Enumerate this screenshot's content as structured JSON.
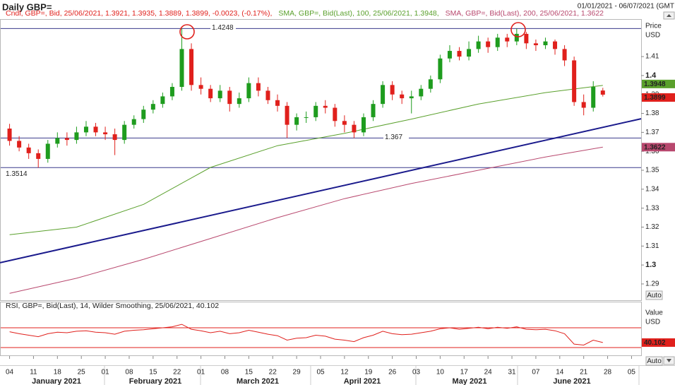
{
  "header": {
    "title": "Daily GBP=",
    "date_range": "01/01/2021 - 06/07/2021 (GMT"
  },
  "chart_data": [
    {
      "type": "candlestick",
      "legend": "Cndl, GBP=, Bid, 25/06/2021, 1.3921, 1.3935, 1.3889, 1.3899, -0.0023, (-0.17%),",
      "up_color": "#1e9c1e",
      "down_color": "#e0201c",
      "x": [
        0,
        2,
        4,
        6,
        8,
        10,
        12,
        14,
        16,
        18,
        20,
        22,
        24,
        26,
        28,
        30,
        32,
        34,
        36,
        38,
        40,
        42,
        44,
        46,
        48,
        50,
        52,
        54,
        56,
        58,
        60,
        62,
        64,
        66,
        68,
        70,
        72,
        74,
        76,
        78,
        80,
        82,
        84,
        86,
        88,
        90,
        92,
        94,
        96,
        98,
        100,
        102,
        104,
        106,
        108,
        110,
        112,
        114,
        116,
        118,
        120,
        122,
        124
      ],
      "open": [
        1.372,
        1.3655,
        1.362,
        1.359,
        1.356,
        1.364,
        1.367,
        1.366,
        1.37,
        1.373,
        1.37,
        1.369,
        1.366,
        1.374,
        1.377,
        1.382,
        1.385,
        1.389,
        1.394,
        1.414,
        1.395,
        1.393,
        1.388,
        1.392,
        1.385,
        1.388,
        1.396,
        1.392,
        1.387,
        1.384,
        1.374,
        1.378,
        1.378,
        1.384,
        1.383,
        1.376,
        1.374,
        1.37,
        1.378,
        1.385,
        1.395,
        1.39,
        1.388,
        1.389,
        1.393,
        1.398,
        1.409,
        1.413,
        1.41,
        1.414,
        1.418,
        1.415,
        1.42,
        1.418,
        1.422,
        1.417,
        1.416,
        1.418,
        1.414,
        1.408,
        1.386,
        1.383,
        1.3921
      ],
      "high": [
        1.3745,
        1.368,
        1.364,
        1.361,
        1.366,
        1.37,
        1.37,
        1.373,
        1.376,
        1.375,
        1.373,
        1.372,
        1.376,
        1.379,
        1.384,
        1.387,
        1.391,
        1.396,
        1.4248,
        1.417,
        1.399,
        1.395,
        1.395,
        1.394,
        1.391,
        1.399,
        1.399,
        1.394,
        1.39,
        1.386,
        1.38,
        1.381,
        1.386,
        1.387,
        1.385,
        1.379,
        1.376,
        1.38,
        1.387,
        1.397,
        1.397,
        1.392,
        1.392,
        1.395,
        1.4,
        1.411,
        1.416,
        1.415,
        1.418,
        1.421,
        1.42,
        1.422,
        1.422,
        1.4248,
        1.423,
        1.419,
        1.42,
        1.419,
        1.416,
        1.41,
        1.39,
        1.397,
        1.3935
      ],
      "low": [
        1.363,
        1.36,
        1.356,
        1.3514,
        1.354,
        1.362,
        1.363,
        1.364,
        1.368,
        1.368,
        1.366,
        1.358,
        1.364,
        1.372,
        1.375,
        1.38,
        1.383,
        1.387,
        1.392,
        1.392,
        1.39,
        1.386,
        1.386,
        1.381,
        1.383,
        1.386,
        1.389,
        1.385,
        1.381,
        1.367,
        1.371,
        1.375,
        1.376,
        1.38,
        1.373,
        1.37,
        1.367,
        1.368,
        1.376,
        1.383,
        1.387,
        1.385,
        1.38,
        1.387,
        1.391,
        1.396,
        1.407,
        1.408,
        1.408,
        1.412,
        1.412,
        1.413,
        1.415,
        1.416,
        1.414,
        1.413,
        1.414,
        1.411,
        1.405,
        1.384,
        1.379,
        1.381,
        1.3889
      ],
      "close": [
        1.3655,
        1.362,
        1.359,
        1.356,
        1.364,
        1.367,
        1.366,
        1.37,
        1.373,
        1.37,
        1.369,
        1.366,
        1.374,
        1.377,
        1.382,
        1.385,
        1.389,
        1.394,
        1.414,
        1.395,
        1.393,
        1.388,
        1.392,
        1.385,
        1.388,
        1.396,
        1.392,
        1.387,
        1.384,
        1.374,
        1.378,
        1.378,
        1.384,
        1.383,
        1.376,
        1.374,
        1.37,
        1.378,
        1.385,
        1.395,
        1.39,
        1.388,
        1.389,
        1.393,
        1.398,
        1.409,
        1.413,
        1.41,
        1.414,
        1.418,
        1.415,
        1.42,
        1.418,
        1.422,
        1.417,
        1.416,
        1.418,
        1.414,
        1.408,
        1.386,
        1.383,
        1.394,
        1.3899
      ],
      "series": [
        {
          "name": "SMA, GBP=, Bid(Last), 100, 25/06/2021, 1.3948,",
          "color": "#5aa02c",
          "x": [
            0,
            14,
            28,
            42,
            56,
            70,
            84,
            98,
            112,
            124
          ],
          "values": [
            1.316,
            1.32,
            1.332,
            1.3515,
            1.363,
            1.3695,
            1.377,
            1.385,
            1.391,
            1.3948
          ]
        },
        {
          "name": "SMA, GBP=, Bid(Last), 200, 25/06/2021, 1.3622",
          "color": "#b8486e",
          "x": [
            0,
            14,
            28,
            42,
            56,
            70,
            84,
            98,
            112,
            124
          ],
          "values": [
            1.285,
            1.293,
            1.303,
            1.314,
            1.325,
            1.335,
            1.343,
            1.35,
            1.357,
            1.3622
          ]
        }
      ],
      "trendline": {
        "color": "#1a1a8c",
        "x": [
          -2,
          132
        ],
        "values": [
          1.3012,
          1.3772
        ]
      },
      "hlines": [
        1.4248,
        1.367,
        1.3514
      ],
      "y_axis_title": [
        "Price",
        "USD"
      ],
      "auto": "Auto",
      "xlim": [
        -2,
        132
      ],
      "ylim": [
        1.2814,
        1.4298
      ],
      "yticks": [
        1.29,
        1.3,
        1.31,
        1.32,
        1.33,
        1.34,
        1.35,
        1.36,
        1.37,
        1.38,
        1.39,
        1.4,
        1.41
      ],
      "xticks": [
        {
          "value": 0,
          "label": "04"
        },
        {
          "value": 5,
          "label": "11"
        },
        {
          "value": 10,
          "label": "18"
        },
        {
          "value": 15,
          "label": "25"
        },
        {
          "value": 20,
          "label": "01"
        },
        {
          "value": 25,
          "label": "08"
        },
        {
          "value": 30,
          "label": "15"
        },
        {
          "value": 35,
          "label": "22"
        },
        {
          "value": 40,
          "label": "01"
        },
        {
          "value": 45,
          "label": "08"
        },
        {
          "value": 50,
          "label": "15"
        },
        {
          "value": 55,
          "label": "22"
        },
        {
          "value": 60,
          "label": "29"
        },
        {
          "value": 65,
          "label": "05"
        },
        {
          "value": 70,
          "label": "12"
        },
        {
          "value": 75,
          "label": "19"
        },
        {
          "value": 80,
          "label": "26"
        },
        {
          "value": 85,
          "label": "03"
        },
        {
          "value": 90,
          "label": "10"
        },
        {
          "value": 95,
          "label": "17"
        },
        {
          "value": 100,
          "label": "24"
        },
        {
          "value": 105,
          "label": "31"
        },
        {
          "value": 110,
          "label": "07"
        },
        {
          "value": 115,
          "label": "14"
        },
        {
          "value": 120,
          "label": "21"
        },
        {
          "value": 125,
          "label": "28"
        },
        {
          "value": 130,
          "label": "05"
        }
      ],
      "month_labels": [
        "January 2021",
        "February 2021",
        "March 2021",
        "April 2021",
        "May 2021",
        "June 2021"
      ]
    },
    {
      "type": "line",
      "legend": "RSI, GBP=, Bid(Last), 14, Wilder Smoothing, 25/06/2021, 40.102",
      "color": "#e0201c",
      "x": [
        0,
        2,
        4,
        6,
        8,
        10,
        12,
        14,
        16,
        18,
        20,
        22,
        24,
        26,
        28,
        30,
        32,
        34,
        36,
        38,
        40,
        42,
        44,
        46,
        48,
        50,
        52,
        54,
        56,
        58,
        60,
        62,
        64,
        66,
        68,
        70,
        72,
        74,
        76,
        78,
        80,
        82,
        84,
        86,
        88,
        90,
        92,
        94,
        96,
        98,
        100,
        102,
        104,
        106,
        108,
        110,
        112,
        114,
        116,
        118,
        120,
        122,
        124
      ],
      "values": [
        62,
        58,
        55,
        52,
        58,
        61,
        60,
        63,
        64,
        61,
        60,
        57,
        63,
        65,
        66,
        68,
        70,
        72,
        77,
        67,
        64,
        60,
        63,
        58,
        60,
        65,
        61,
        57,
        54,
        45,
        49,
        50,
        55,
        53,
        47,
        45,
        42,
        50,
        55,
        63,
        58,
        56,
        57,
        60,
        63,
        68,
        70,
        67,
        69,
        71,
        68,
        71,
        69,
        72,
        67,
        66,
        67,
        64,
        58,
        37,
        35,
        45,
        40.102
      ],
      "levels": [
        70,
        30
      ],
      "y_axis_title": [
        "Value",
        "USD"
      ],
      "auto": "Auto",
      "xlim": [
        -2,
        132
      ],
      "ylim": [
        14.3,
        105.7
      ]
    }
  ]
}
